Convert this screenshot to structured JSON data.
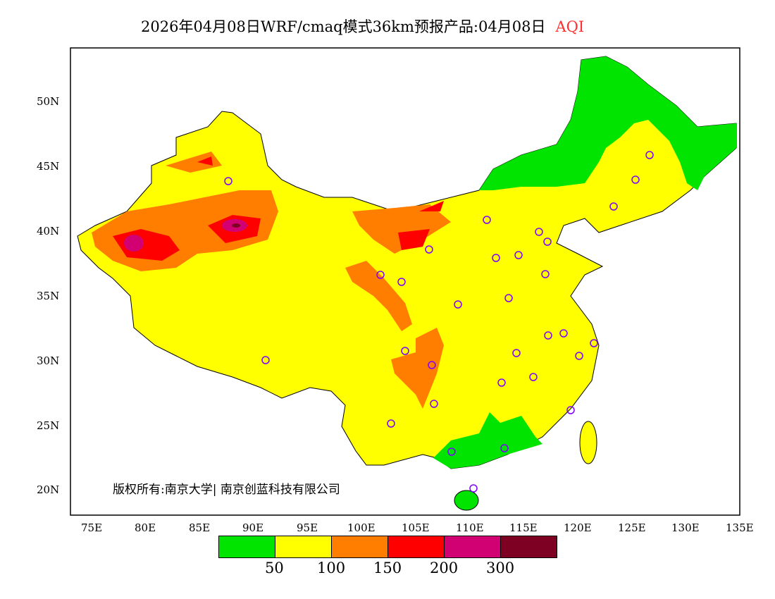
{
  "title": {
    "main": "2026年04月08日WRF/cmaq模式36km预报产品:04月08日",
    "variable": "AQI"
  },
  "axes": {
    "lon_labels": [
      "75E",
      "80E",
      "85E",
      "90E",
      "95E",
      "100E",
      "105E",
      "110E",
      "115E",
      "120E",
      "125E",
      "130E",
      "135E"
    ],
    "lat_labels": [
      "50N",
      "45N",
      "40N",
      "35N",
      "30N",
      "25N",
      "20N"
    ]
  },
  "credit": "版权所有:南京大学| 南京创蓝科技有限公司",
  "legend": {
    "colors": [
      "#00e400",
      "#ffff00",
      "#ff7e00",
      "#ff0000",
      "#d10073",
      "#7e0023"
    ],
    "thresholds": [
      "50",
      "100",
      "150",
      "200",
      "300"
    ]
  }
}
